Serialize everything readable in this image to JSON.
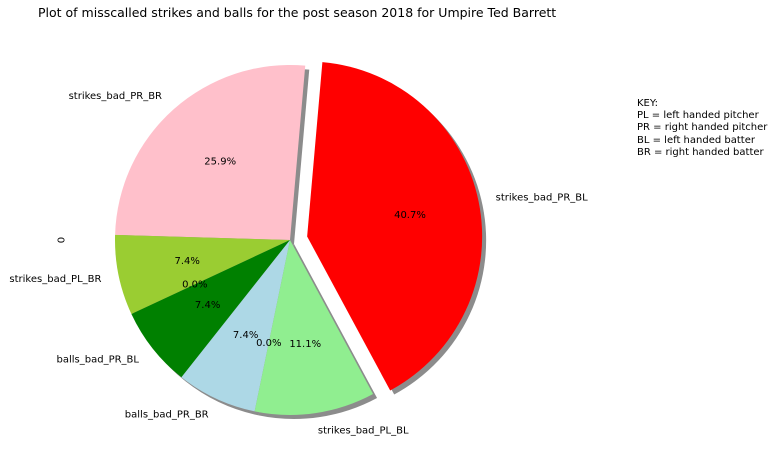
{
  "chart_data": {
    "type": "pie",
    "title": "Plot of misscalled strikes and balls for the post season 2018 for Umpire Ted Barrett",
    "ylabel": "0",
    "start_angle_deg": 85,
    "counterclockwise": true,
    "shadow": true,
    "slices": [
      {
        "label": "strikes_bad_PR_BR",
        "value": 7,
        "pct_label": "25.9%",
        "color": "#FFC0CB",
        "explode": false
      },
      {
        "label": "strikes_bad_PL_BR",
        "value": 2,
        "pct_label": "7.4%",
        "color": "#9ACD32",
        "explode": false
      },
      {
        "label": "",
        "value": 0,
        "pct_label": "0.0%",
        "color": "#FFFFFF",
        "explode": false
      },
      {
        "label": "balls_bad_PR_BL",
        "value": 2,
        "pct_label": "7.4%",
        "color": "#008000",
        "explode": false
      },
      {
        "label": "balls_bad_PR_BR",
        "value": 2,
        "pct_label": "7.4%",
        "color": "#ADD8E6",
        "explode": false
      },
      {
        "label": "",
        "value": 0,
        "pct_label": "0.0%",
        "color": "#FFFFFF",
        "explode": false
      },
      {
        "label": "strikes_bad_PL_BL",
        "value": 3,
        "pct_label": "11.1%",
        "color": "#90EE90",
        "explode": false
      },
      {
        "label": "strikes_bad_PR_BL",
        "value": 11,
        "pct_label": "40.7%",
        "color": "#FF0000",
        "explode": true
      }
    ],
    "annotations": [
      "KEY:",
      "PL = left handed pitcher",
      "PR = right handed pitcher",
      "BL = left handed batter",
      "BR = right handed batter"
    ]
  }
}
